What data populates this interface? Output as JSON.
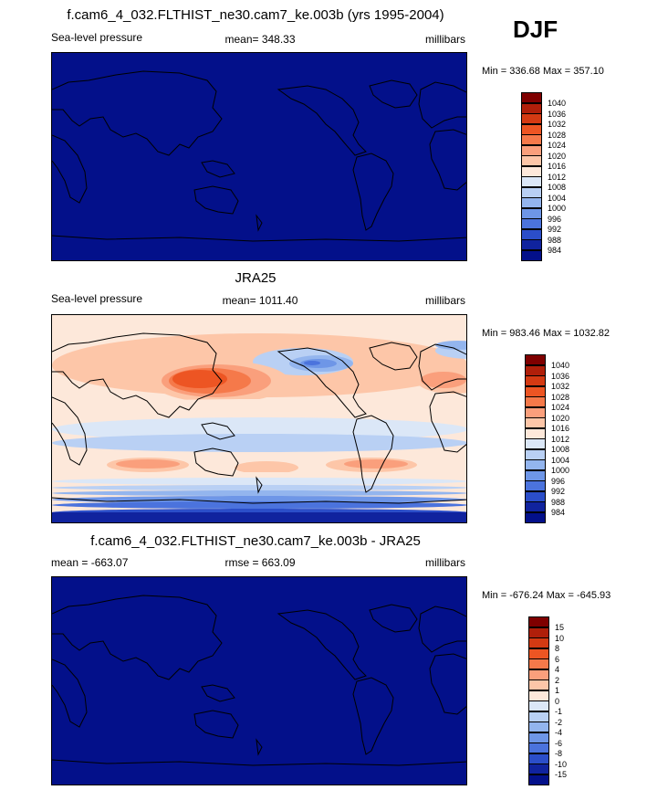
{
  "season": "DJF",
  "panels": [
    {
      "title": "f.cam6_4_032.FLTHIST_ne30.cam7_ke.003b (yrs 1995-2004)",
      "left": "Sea-level pressure",
      "center": "mean= 348.33",
      "right": "millibars",
      "minmax": "Min = 336.68 Max = 357.10",
      "fill": "uniform",
      "colorbar_labels": [
        "1040",
        "1036",
        "1032",
        "1028",
        "1024",
        "1020",
        "1016",
        "1012",
        "1008",
        "1004",
        "1000",
        "996",
        "992",
        "988",
        "984"
      ]
    },
    {
      "title": "JRA25",
      "left": "Sea-level pressure",
      "center": "mean= 1011.40",
      "right": "millibars",
      "minmax": "Min = 983.46 Max = 1032.82",
      "fill": "field",
      "colorbar_labels": [
        "1040",
        "1036",
        "1032",
        "1028",
        "1024",
        "1020",
        "1016",
        "1012",
        "1008",
        "1004",
        "1000",
        "996",
        "992",
        "988",
        "984"
      ]
    },
    {
      "title": "f.cam6_4_032.FLTHIST_ne30.cam7_ke.003b - JRA25",
      "left": "mean = -663.07",
      "center": "rmse = 663.09",
      "right": "millibars",
      "minmax": "Min = -676.24 Max = -645.93",
      "fill": "uniform",
      "colorbar_labels": [
        "15",
        "10",
        "8",
        "6",
        "4",
        "2",
        "1",
        "0",
        "-1",
        "-2",
        "-4",
        "-6",
        "-8",
        "-10",
        "-15"
      ]
    }
  ],
  "palette": [
    "#7f0000",
    "#b01f0a",
    "#d43a13",
    "#ed5523",
    "#f5794a",
    "#fa9f7c",
    "#fdc6a8",
    "#fde8da",
    "#dbe7f7",
    "#b9d0f4",
    "#93b5ee",
    "#6e96e7",
    "#4b73dd",
    "#2b4ec9",
    "#10239e",
    "#03108a"
  ],
  "uniform_color": "#03108a",
  "icons": {
    "map": "world-coastline-map"
  }
}
